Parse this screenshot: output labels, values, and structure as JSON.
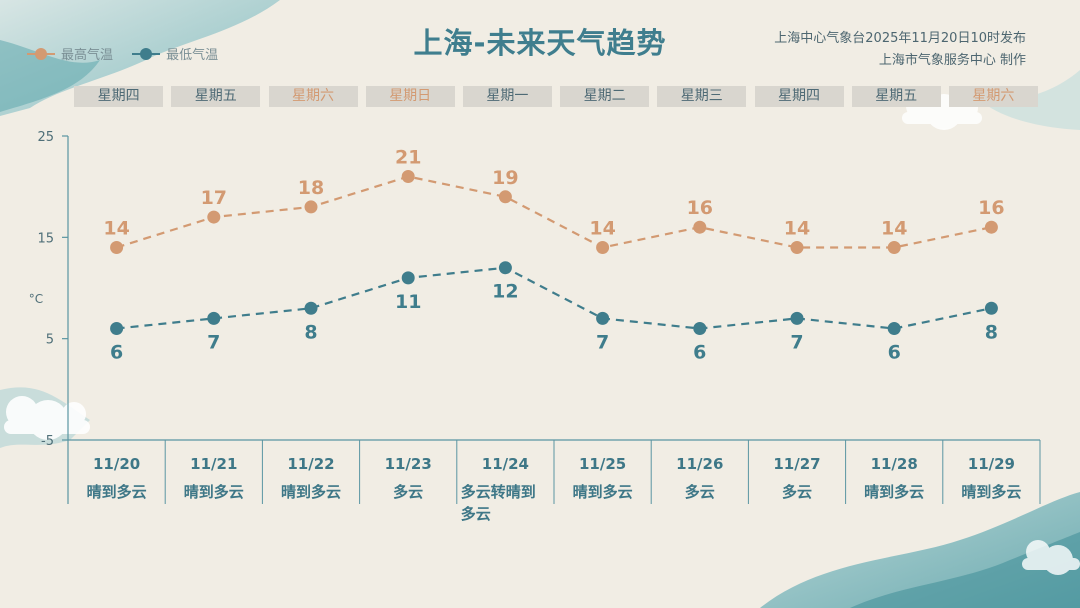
{
  "header": {
    "title": "上海-未来天气趋势",
    "issuer_line1": "上海中心气象台2025年11月20日10时发布",
    "issuer_line2": "上海市气象服务中心 制作"
  },
  "legend": {
    "high_label": "最高气温",
    "low_label": "最低气温"
  },
  "colors": {
    "high": "#d39a72",
    "low": "#3f7d8c",
    "axis": "#5a95a2",
    "title": "#3f7e8e"
  },
  "days": [
    {
      "weekday": "星期四",
      "weekend": false,
      "date": "11/20",
      "weather": "晴到多云"
    },
    {
      "weekday": "星期五",
      "weekend": false,
      "date": "11/21",
      "weather": "晴到多云"
    },
    {
      "weekday": "星期六",
      "weekend": true,
      "date": "11/22",
      "weather": "晴到多云"
    },
    {
      "weekday": "星期日",
      "weekend": true,
      "date": "11/23",
      "weather": "多云"
    },
    {
      "weekday": "星期一",
      "weekend": false,
      "date": "11/24",
      "weather": "多云转晴到多云"
    },
    {
      "weekday": "星期二",
      "weekend": false,
      "date": "11/25",
      "weather": "晴到多云"
    },
    {
      "weekday": "星期三",
      "weekend": false,
      "date": "11/26",
      "weather": "多云"
    },
    {
      "weekday": "星期四",
      "weekend": false,
      "date": "11/27",
      "weather": "多云"
    },
    {
      "weekday": "星期五",
      "weekend": false,
      "date": "11/28",
      "weather": "晴到多云"
    },
    {
      "weekday": "星期六",
      "weekend": true,
      "date": "11/29",
      "weather": "晴到多云"
    }
  ],
  "chart_data": {
    "type": "line",
    "title": "上海-未来天气趋势",
    "ylabel": "°C",
    "xlabel": "",
    "categories": [
      "11/20",
      "11/21",
      "11/22",
      "11/23",
      "11/24",
      "11/25",
      "11/26",
      "11/27",
      "11/28",
      "11/29"
    ],
    "series": [
      {
        "name": "最高气温",
        "values": [
          14,
          17,
          18,
          21,
          19,
          14,
          16,
          14,
          14,
          16
        ]
      },
      {
        "name": "最低气温",
        "values": [
          6,
          7,
          8,
          11,
          12,
          7,
          6,
          7,
          6,
          8
        ]
      }
    ],
    "yticks": [
      25,
      15,
      5,
      -5
    ],
    "ylim": [
      -5,
      25
    ],
    "grid": false,
    "legend_position": "top-left"
  }
}
